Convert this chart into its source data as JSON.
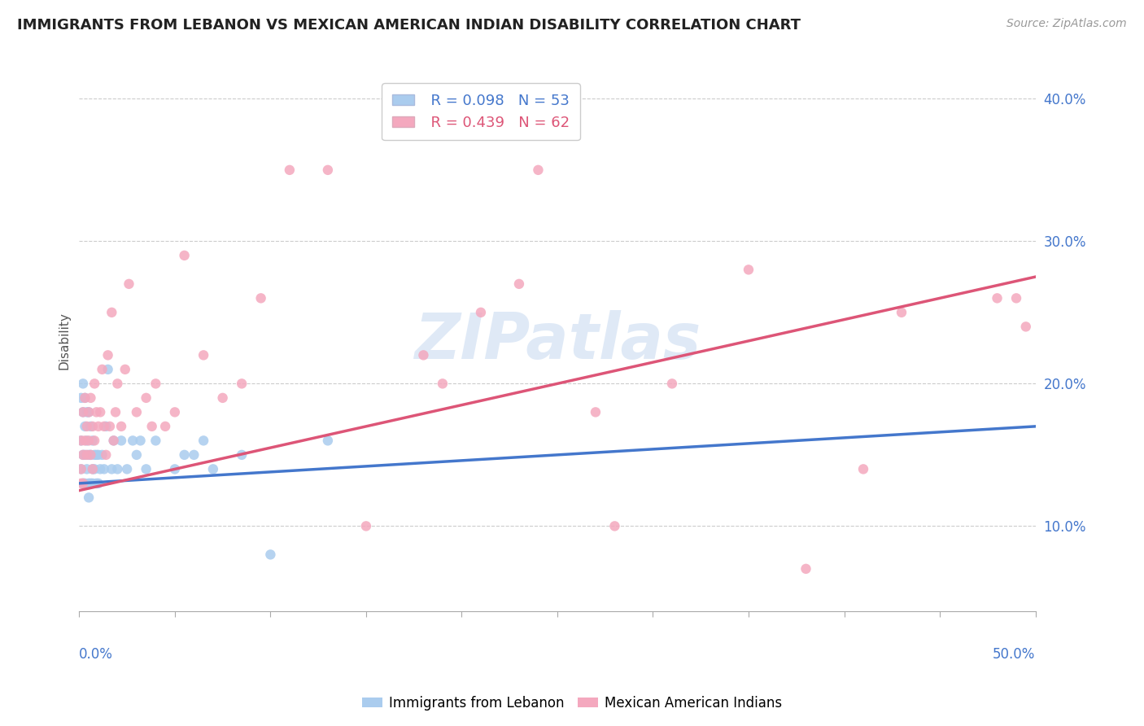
{
  "title": "IMMIGRANTS FROM LEBANON VS MEXICAN AMERICAN INDIAN DISABILITY CORRELATION CHART",
  "source": "Source: ZipAtlas.com",
  "ylabel": "Disability",
  "xlim": [
    0.0,
    0.5
  ],
  "ylim": [
    0.04,
    0.42
  ],
  "blue_R": 0.098,
  "blue_N": 53,
  "pink_R": 0.439,
  "pink_N": 62,
  "blue_color": "#aaccee",
  "pink_color": "#f4a8be",
  "blue_line_color": "#4477cc",
  "pink_line_color": "#dd5577",
  "watermark": "ZIPatlas",
  "blue_line_x0": 0.0,
  "blue_line_y0": 0.13,
  "blue_line_x1": 0.5,
  "blue_line_y1": 0.17,
  "pink_line_x0": 0.0,
  "pink_line_y0": 0.125,
  "pink_line_x1": 0.5,
  "pink_line_y1": 0.275,
  "blue_scatter_x": [
    0.001,
    0.001,
    0.001,
    0.002,
    0.002,
    0.002,
    0.002,
    0.003,
    0.003,
    0.003,
    0.003,
    0.004,
    0.004,
    0.004,
    0.005,
    0.005,
    0.005,
    0.005,
    0.006,
    0.006,
    0.006,
    0.007,
    0.007,
    0.007,
    0.008,
    0.008,
    0.009,
    0.009,
    0.01,
    0.01,
    0.011,
    0.012,
    0.013,
    0.014,
    0.015,
    0.017,
    0.018,
    0.02,
    0.022,
    0.025,
    0.028,
    0.03,
    0.032,
    0.035,
    0.04,
    0.05,
    0.055,
    0.06,
    0.065,
    0.07,
    0.085,
    0.1,
    0.13
  ],
  "blue_scatter_y": [
    0.19,
    0.16,
    0.14,
    0.2,
    0.18,
    0.15,
    0.13,
    0.19,
    0.17,
    0.15,
    0.13,
    0.18,
    0.16,
    0.14,
    0.18,
    0.15,
    0.13,
    0.12,
    0.17,
    0.15,
    0.13,
    0.16,
    0.14,
    0.13,
    0.15,
    0.14,
    0.15,
    0.13,
    0.15,
    0.13,
    0.14,
    0.15,
    0.14,
    0.17,
    0.21,
    0.14,
    0.16,
    0.14,
    0.16,
    0.14,
    0.16,
    0.15,
    0.16,
    0.14,
    0.16,
    0.14,
    0.15,
    0.15,
    0.16,
    0.14,
    0.15,
    0.08,
    0.16
  ],
  "pink_scatter_x": [
    0.001,
    0.001,
    0.001,
    0.002,
    0.002,
    0.002,
    0.003,
    0.003,
    0.004,
    0.004,
    0.005,
    0.005,
    0.006,
    0.006,
    0.007,
    0.007,
    0.008,
    0.008,
    0.009,
    0.01,
    0.011,
    0.012,
    0.013,
    0.014,
    0.015,
    0.016,
    0.017,
    0.018,
    0.019,
    0.02,
    0.022,
    0.024,
    0.026,
    0.03,
    0.035,
    0.038,
    0.04,
    0.045,
    0.05,
    0.055,
    0.065,
    0.075,
    0.085,
    0.095,
    0.11,
    0.13,
    0.15,
    0.18,
    0.19,
    0.21,
    0.23,
    0.24,
    0.27,
    0.28,
    0.31,
    0.35,
    0.38,
    0.41,
    0.43,
    0.48,
    0.49,
    0.495
  ],
  "pink_scatter_y": [
    0.16,
    0.14,
    0.13,
    0.18,
    0.15,
    0.13,
    0.19,
    0.16,
    0.17,
    0.15,
    0.18,
    0.16,
    0.19,
    0.15,
    0.17,
    0.14,
    0.2,
    0.16,
    0.18,
    0.17,
    0.18,
    0.21,
    0.17,
    0.15,
    0.22,
    0.17,
    0.25,
    0.16,
    0.18,
    0.2,
    0.17,
    0.21,
    0.27,
    0.18,
    0.19,
    0.17,
    0.2,
    0.17,
    0.18,
    0.29,
    0.22,
    0.19,
    0.2,
    0.26,
    0.35,
    0.35,
    0.1,
    0.22,
    0.2,
    0.25,
    0.27,
    0.35,
    0.18,
    0.1,
    0.2,
    0.28,
    0.07,
    0.14,
    0.25,
    0.26,
    0.26,
    0.24
  ]
}
